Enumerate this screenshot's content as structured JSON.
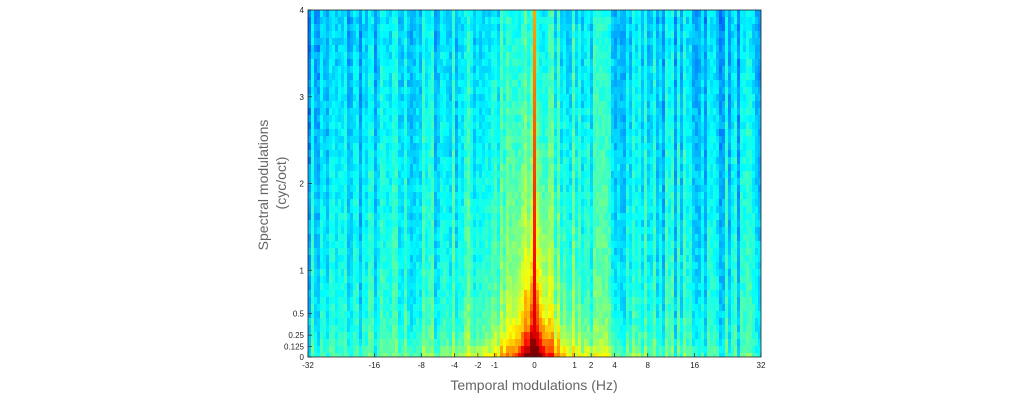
{
  "chart_data": {
    "type": "heatmap",
    "title": "",
    "xlabel": "Temporal modulations (Hz)",
    "ylabel_lines": [
      "Spectral modulations",
      "(cyc/oct)"
    ],
    "x_scale": "symmetric-compressed",
    "xlim": [
      -32,
      32
    ],
    "ylim": [
      0,
      4
    ],
    "x_ticks": [
      {
        "value": -32,
        "label": "-32"
      },
      {
        "value": -16,
        "label": "-16"
      },
      {
        "value": -8,
        "label": "-8"
      },
      {
        "value": -4,
        "label": "-4"
      },
      {
        "value": -2,
        "label": "-2"
      },
      {
        "value": -1,
        "label": "-1"
      },
      {
        "value": 0,
        "label": "0"
      },
      {
        "value": 1,
        "label": "1"
      },
      {
        "value": 2,
        "label": "2"
      },
      {
        "value": 4,
        "label": "4"
      },
      {
        "value": 8,
        "label": "8"
      },
      {
        "value": 16,
        "label": "16"
      },
      {
        "value": 32,
        "label": "32"
      }
    ],
    "y_ticks": [
      {
        "value": 0,
        "label": "0"
      },
      {
        "value": 0.125,
        "label": "0.125"
      },
      {
        "value": 0.25,
        "label": "0.25"
      },
      {
        "value": 0.5,
        "label": "0.5"
      },
      {
        "value": 1,
        "label": "1"
      },
      {
        "value": 2,
        "label": "2"
      },
      {
        "value": 3,
        "label": "3"
      },
      {
        "value": 4,
        "label": "4"
      }
    ],
    "colormap": "jet",
    "grid": false,
    "peak_location": {
      "x": 0,
      "y": 0
    },
    "description_of_field": "energy concentrated near 0 Hz temporal and low spectral modulation, decaying outward"
  }
}
